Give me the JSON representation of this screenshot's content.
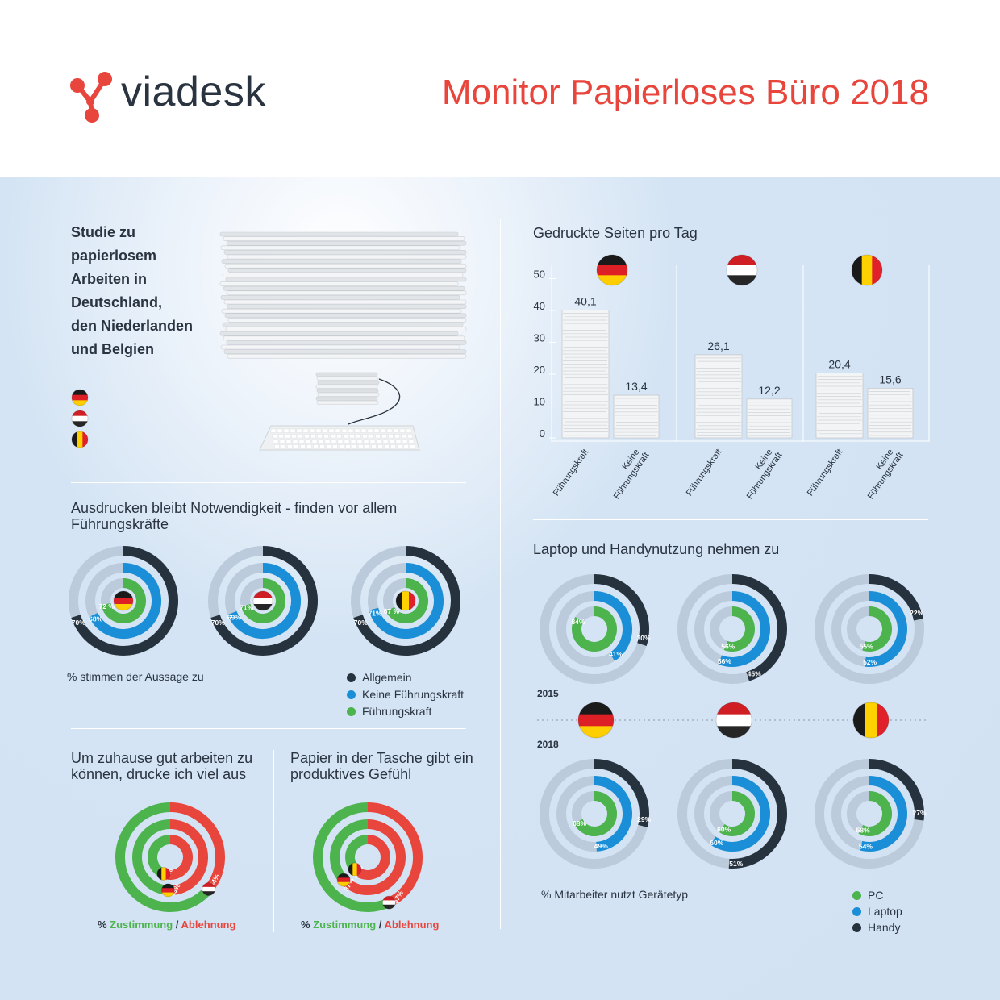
{
  "header": {
    "brand": "viadesk",
    "title": "Monitor Papierloses Büro 2018",
    "accent_color": "#e8453c"
  },
  "intro": {
    "lines": [
      "Studie zu",
      "papierlosem",
      "Arbeiten in",
      "Deutschland,",
      "den Niederlanden",
      "und Belgien"
    ],
    "flags": [
      "germany-flag-icon",
      "netherlands-flag-icon",
      "belgium-flag-icon"
    ]
  },
  "colors": {
    "allgemein": "#26323e",
    "keine_fuehrungskraft": "#1a8fd8",
    "fuehrungskraft": "#4cb34d",
    "pc": "#4cb34d",
    "laptop": "#1a8fd8",
    "handy": "#26323e",
    "zustimmung": "#4cb34d",
    "ablehnung": "#e8453c",
    "track": "#bccbdb"
  },
  "chart_data": [
    {
      "id": "printed_pages",
      "type": "bar",
      "title": "Gedruckte Seiten pro Tag",
      "categories": [
        "Führungskraft",
        "Keine Führungskraft"
      ],
      "category_lines": [
        [
          "Führungskraft"
        ],
        [
          "Keine",
          "Führungskraft"
        ]
      ],
      "yticks": [
        "0",
        "10",
        "20",
        "30",
        "40",
        "50"
      ],
      "ylim": [
        0,
        50
      ],
      "series": [
        {
          "flag": "germany-flag-icon",
          "values": [
            40.1,
            13.4
          ],
          "labels": [
            "40,1",
            "13,4"
          ]
        },
        {
          "flag": "netherlands-flag-icon",
          "values": [
            26.1,
            12.2
          ],
          "labels": [
            "26,1",
            "12,2"
          ]
        },
        {
          "flag": "belgium-flag-icon",
          "values": [
            20.4,
            15.6
          ],
          "labels": [
            "20,4",
            "15,6"
          ]
        }
      ]
    },
    {
      "id": "print_necessity",
      "type": "radial-bar",
      "title": "Ausdrucken bleibt Notwendigkeit - finden vor allem Führungskräfte",
      "caption": "% stimmen der Aussage zu",
      "legend": [
        "Allgemein",
        "Keine Führungskraft",
        "Führungskraft"
      ],
      "charts": [
        {
          "flag": "germany-flag-icon",
          "values": [
            70,
            68,
            72
          ],
          "labels": [
            "70%",
            "68%",
            "72 %"
          ]
        },
        {
          "flag": "netherlands-flag-icon",
          "values": [
            70,
            69,
            71
          ],
          "labels": [
            "70%",
            "69%",
            "71%"
          ]
        },
        {
          "flag": "belgium-flag-icon",
          "values": [
            70,
            71,
            67
          ],
          "labels": [
            "70%",
            "71%",
            "67 %"
          ]
        }
      ]
    },
    {
      "id": "device_usage",
      "type": "radial-bar",
      "title": "Laptop und Handynutzung nehmen zu",
      "caption": "% Mitarbeiter nutzt Gerätetyp",
      "legend": [
        "PC",
        "Laptop",
        "Handy"
      ],
      "years": [
        "2015",
        "2018"
      ],
      "flags": [
        "germany-flag-icon",
        "netherlands-flag-icon",
        "belgium-flag-icon"
      ],
      "y2015": [
        {
          "values": [
            30,
            41,
            84
          ],
          "labels": [
            "30%",
            "41%",
            "84%"
          ]
        },
        {
          "values": [
            45,
            56,
            56
          ],
          "labels": [
            "45%",
            "56%",
            "56%"
          ]
        },
        {
          "values": [
            22,
            52,
            55
          ],
          "labels": [
            "22%",
            "52%",
            "55%"
          ]
        }
      ],
      "y2018": [
        {
          "values": [
            29,
            49,
            68
          ],
          "labels": [
            "29%",
            "49%",
            "68%"
          ]
        },
        {
          "values": [
            51,
            60,
            60
          ],
          "labels": [
            "51%",
            "60%",
            "60%"
          ]
        },
        {
          "values": [
            27,
            54,
            58
          ],
          "labels": [
            "27%",
            "54%",
            "58%"
          ]
        }
      ]
    },
    {
      "id": "home_print",
      "type": "radial-bar",
      "title": "Um zuhause gut arbeiten zu können, drucke ich viel aus",
      "rings": [
        {
          "flag": "netherlands-flag-icon",
          "value": 64,
          "label": "64%"
        },
        {
          "flag": "germany-flag-icon",
          "value": 49,
          "label": "49%"
        },
        {
          "flag": "belgium-flag-icon",
          "value": 44,
          "label": "44%"
        }
      ],
      "caption": {
        "prefix": "% ",
        "agree": "Zustimmung",
        "sep": " / ",
        "reject": "Ablehnung"
      }
    },
    {
      "id": "paper_bag",
      "type": "radial-bar",
      "title": "Papier in der Tasche gibt ein produktives Gefühl",
      "rings": [
        {
          "flag": "netherlands-flag-icon",
          "value": 57,
          "label": "57%"
        },
        {
          "flag": "germany-flag-icon",
          "value": 37,
          "label": "37%"
        },
        {
          "flag": "belgium-flag-icon",
          "value": 37,
          "label": "37%"
        }
      ],
      "caption": {
        "prefix": "% ",
        "agree": "Zustimmung",
        "sep": " / ",
        "reject": "Ablehnung"
      }
    }
  ]
}
